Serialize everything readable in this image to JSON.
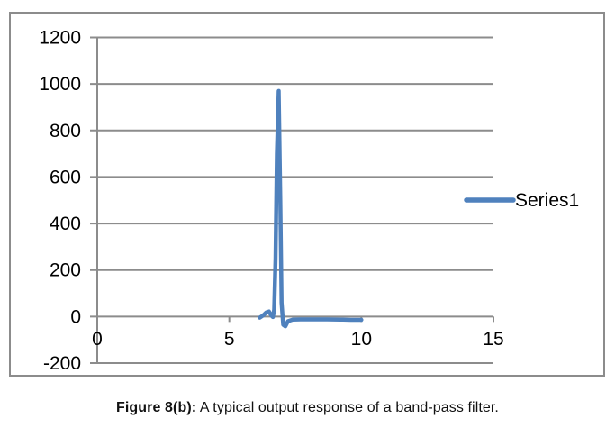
{
  "caption": {
    "bold": "Figure 8(b):",
    "rest": " A typical output response of a band-pass filter."
  },
  "chart_data": {
    "type": "line",
    "title": "",
    "xlabel": "",
    "ylabel": "",
    "xlim": [
      0,
      15
    ],
    "ylim": [
      -200,
      1200
    ],
    "x_ticks": [
      0,
      5,
      10,
      15
    ],
    "y_ticks": [
      1200,
      1000,
      800,
      600,
      400,
      200,
      0,
      -200
    ],
    "grid": "horizontal",
    "legend": {
      "position": "right",
      "entries": [
        "Series1"
      ]
    },
    "peak": {
      "x": 6.87,
      "y": 970
    },
    "series": [
      {
        "name": "Series1",
        "color": "#4F81BD",
        "points": [
          [
            6.15,
            -5
          ],
          [
            6.28,
            5
          ],
          [
            6.4,
            18
          ],
          [
            6.5,
            22
          ],
          [
            6.58,
            6
          ],
          [
            6.65,
            -2
          ],
          [
            6.7,
            30
          ],
          [
            6.75,
            250
          ],
          [
            6.8,
            700
          ],
          [
            6.87,
            970
          ],
          [
            6.93,
            500
          ],
          [
            6.98,
            60
          ],
          [
            7.04,
            -35
          ],
          [
            7.12,
            -42
          ],
          [
            7.22,
            -20
          ],
          [
            7.4,
            -13
          ],
          [
            7.7,
            -12
          ],
          [
            8.2,
            -12
          ],
          [
            8.7,
            -12
          ],
          [
            9.2,
            -13
          ],
          [
            9.6,
            -14
          ],
          [
            10,
            -14
          ]
        ]
      }
    ],
    "colors": {
      "grid": "#8C8C8C",
      "axis": "#8C8C8C",
      "border": "#8C8C8C",
      "text": "#000000"
    }
  }
}
